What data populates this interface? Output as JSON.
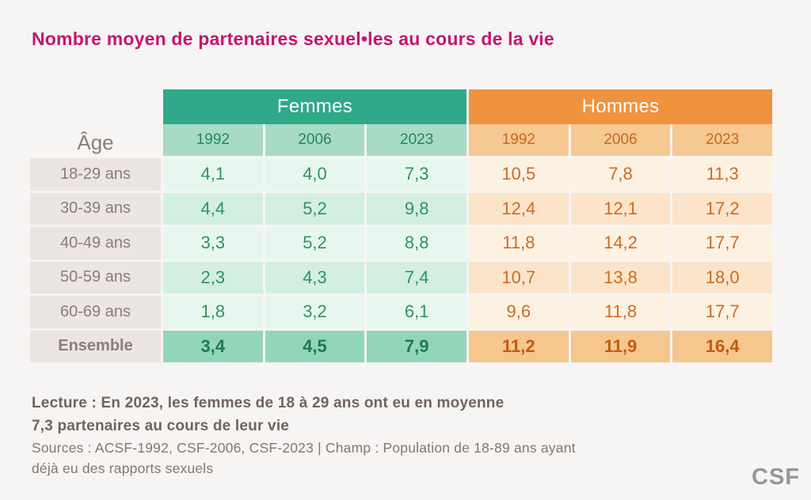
{
  "title": "Nombre moyen de partenaires sexuel•les au cours de la vie",
  "table": {
    "age_header": "Âge",
    "groups": [
      {
        "key": "femmes",
        "label": "Femmes",
        "years": [
          "1992",
          "2006",
          "2023"
        ]
      },
      {
        "key": "hommes",
        "label": "Hommes",
        "years": [
          "1992",
          "2006",
          "2023"
        ]
      }
    ],
    "rows": [
      {
        "age": "18-29 ans",
        "femmes": [
          "4,1",
          "4,0",
          "7,3"
        ],
        "hommes": [
          "10,5",
          "7,8",
          "11,3"
        ],
        "is_total": false
      },
      {
        "age": "30-39 ans",
        "femmes": [
          "4,4",
          "5,2",
          "9,8"
        ],
        "hommes": [
          "12,4",
          "12,1",
          "17,2"
        ],
        "is_total": false
      },
      {
        "age": "40-49 ans",
        "femmes": [
          "3,3",
          "5,2",
          "8,8"
        ],
        "hommes": [
          "11,8",
          "14,2",
          "17,7"
        ],
        "is_total": false
      },
      {
        "age": "50-59 ans",
        "femmes": [
          "2,3",
          "4,3",
          "7,4"
        ],
        "hommes": [
          "10,7",
          "13,8",
          "18,0"
        ],
        "is_total": false
      },
      {
        "age": "60-69 ans",
        "femmes": [
          "1,8",
          "3,2",
          "6,1"
        ],
        "hommes": [
          "9,6",
          "11,8",
          "17,7"
        ],
        "is_total": false
      },
      {
        "age": "Ensemble",
        "femmes": [
          "3,4",
          "4,5",
          "7,9"
        ],
        "hommes": [
          "11,2",
          "11,9",
          "16,4"
        ],
        "is_total": true
      }
    ]
  },
  "chart_data": {
    "type": "table",
    "title": "Nombre moyen de partenaires sexuel•les au cours de la vie",
    "row_header": "Âge",
    "categories": [
      "18-29 ans",
      "30-39 ans",
      "40-49 ans",
      "50-59 ans",
      "60-69 ans",
      "Ensemble"
    ],
    "series": [
      {
        "name": "Femmes 1992",
        "values": [
          4.1,
          4.4,
          3.3,
          2.3,
          1.8,
          3.4
        ]
      },
      {
        "name": "Femmes 2006",
        "values": [
          4.0,
          5.2,
          5.2,
          4.3,
          3.2,
          4.5
        ]
      },
      {
        "name": "Femmes 2023",
        "values": [
          7.3,
          9.8,
          8.8,
          7.4,
          6.1,
          7.9
        ]
      },
      {
        "name": "Hommes 1992",
        "values": [
          10.5,
          12.4,
          11.8,
          10.7,
          9.6,
          11.2
        ]
      },
      {
        "name": "Hommes 2006",
        "values": [
          7.8,
          12.1,
          14.2,
          13.8,
          11.8,
          11.9
        ]
      },
      {
        "name": "Hommes 2023",
        "values": [
          11.3,
          17.2,
          17.7,
          18.0,
          17.7,
          16.4
        ]
      }
    ]
  },
  "notes": {
    "lecture_lines": [
      "Lecture : En 2023, les femmes de 18 à 29 ans ont eu en moyenne",
      "7,3 partenaires au cours de leur vie"
    ],
    "sources_lines": [
      "Sources : ACSF-1992, CSF-2006, CSF-2023 | Champ : Population de 18-89 ans ayant",
      "déjà eu des rapports sexuels"
    ]
  },
  "logo": "CSF",
  "colors": {
    "title": "#c0186d",
    "femmes_header": "#30a88a",
    "hommes_header": "#f0933f",
    "femmes_total_row": "#92d6b8",
    "hommes_total_row": "#f5c68e",
    "age_column": "#ebe5e3",
    "background": "#f7f4f4"
  }
}
